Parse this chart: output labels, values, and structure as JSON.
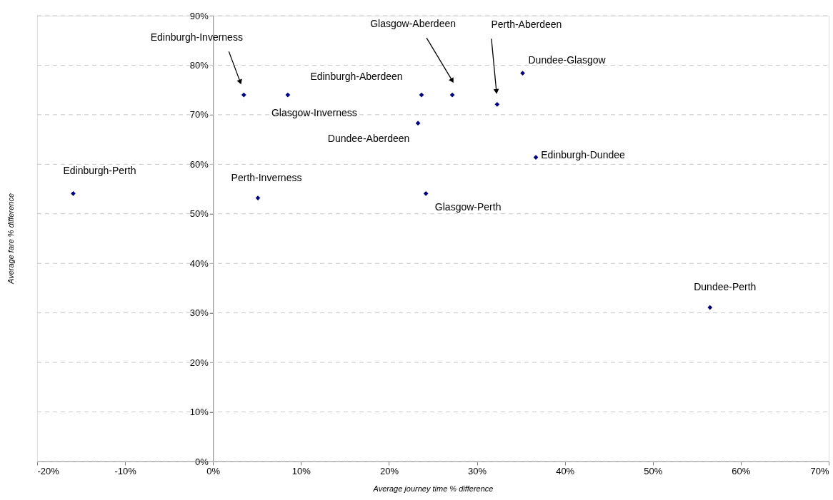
{
  "chart_data": {
    "type": "scatter",
    "xlabel": "Average journey time % difference",
    "ylabel": "Average fare % difference",
    "x": [
      -15.9,
      3.5,
      8.5,
      5.1,
      23.7,
      23.3,
      24.2,
      27.2,
      32.3,
      35.2,
      36.7,
      56.5
    ],
    "series": [
      {
        "color": "#000080",
        "values": [
          54.1,
          74.0,
          74.0,
          53.2,
          74.0,
          68.3,
          54.1,
          74.0,
          72.1,
          78.4,
          61.4,
          31.1
        ]
      }
    ],
    "annotations": [
      {
        "text": "Edinburgh-Perth",
        "x": -15.9,
        "y": 54.1
      },
      "Edinburgh-Inverness",
      {
        "text": "Glasgow-Inverness",
        "x": 8.5,
        "y": 74.0
      },
      {
        "text": "Perth-Inverness",
        "x": 5.1,
        "y": 53.2
      },
      {
        "text": "Edinburgh-Aberdeen",
        "x": 23.7,
        "y": 74.0
      },
      {
        "text": "Dundee-Aberdeen",
        "x": 23.3,
        "y": 68.3
      },
      {
        "text": "Glasgow-Perth",
        "x": 24.2,
        "y": 54.1
      },
      "Glasgow-Aberdeen",
      "Perth-Aberdeen",
      {
        "text": "Dundee-Glasgow",
        "x": 35.2,
        "y": 78.4
      },
      {
        "text": "Edinburgh-Dundee",
        "x": 36.7,
        "y": 61.4
      },
      {
        "text": "Dundee-Perth",
        "x": 56.5,
        "y": 31.1
      }
    ],
    "xlim": [
      -20,
      70
    ],
    "xticks": [
      {
        "value": -20,
        "label": "-20%"
      },
      {
        "value": -10,
        "label": "-10%"
      },
      {
        "value": 0,
        "label": "0%"
      },
      {
        "value": 10,
        "label": "10%"
      },
      {
        "value": 20,
        "label": "20%"
      },
      {
        "value": 30,
        "label": "30%"
      },
      {
        "value": 40,
        "label": "40%"
      },
      {
        "value": 50,
        "label": "50%"
      },
      {
        "value": 60,
        "label": "60%"
      },
      {
        "value": 70,
        "label": "70%"
      }
    ],
    "ylim": [
      0,
      90
    ],
    "yticks": [
      {
        "value": 0,
        "label": "0%"
      },
      {
        "value": 10,
        "label": "10%"
      },
      {
        "value": 20,
        "label": "20%"
      },
      {
        "value": 30,
        "label": "30%"
      },
      {
        "value": 40,
        "label": "40%"
      },
      {
        "value": 50,
        "label": "50%"
      },
      {
        "value": 60,
        "label": "60%"
      },
      {
        "value": 70,
        "label": "70%"
      },
      {
        "value": 80,
        "label": "80%"
      },
      {
        "value": 90,
        "label": "90%"
      }
    ],
    "grid": "y",
    "marker": "diamond"
  }
}
